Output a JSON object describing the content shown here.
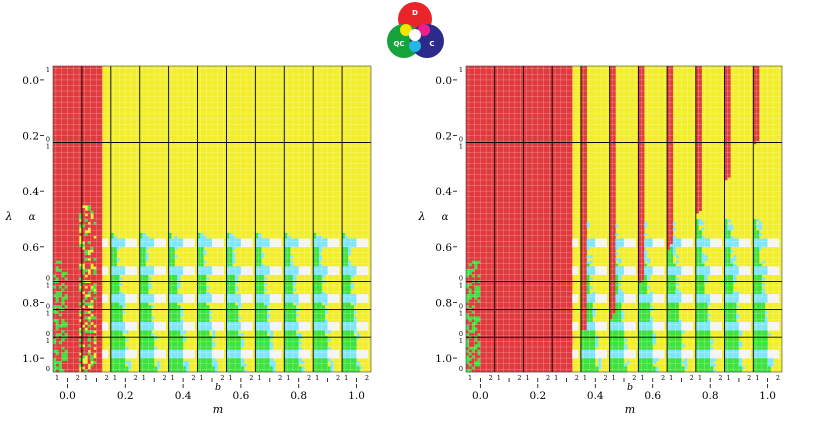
{
  "legend": {
    "items": [
      {
        "label": "D",
        "color": "#e8252b"
      },
      {
        "label": "QC",
        "color": "#17a33b"
      },
      {
        "label": "C",
        "color": "#2c2b8c"
      }
    ],
    "overlap_colors": {
      "D_QC": "#f2e600",
      "D_C": "#ee1e8c",
      "QC_C": "#22b7e6",
      "all": "#ffffff"
    }
  },
  "colors": {
    "D": "#e03a3e",
    "mixed": "#f2ee2c",
    "QC": "#3ee23e",
    "QC_C": "#7fe6ff",
    "C": "#2c2b8c",
    "empty": "#f4f4f4",
    "grid": "#000000"
  },
  "chart_data": [
    {
      "type": "heatmap",
      "xlabel": "m",
      "ylabel": "λ",
      "inner_xlabel": "b",
      "inner_ylabel": "α",
      "xticks": [
        "0.0",
        "0.2",
        "0.4",
        "0.6",
        "0.8",
        "1.0"
      ],
      "yticks": [
        "0.0",
        "0.2",
        "0.4",
        "0.6",
        "0.8",
        "1.0"
      ],
      "xlim": [
        -0.05,
        1.05
      ],
      "ylim": [
        1.05,
        -0.05
      ],
      "m_values": [
        0.0,
        0.1,
        0.2,
        0.3,
        0.4,
        0.5,
        0.6,
        0.7,
        0.8,
        0.9,
        1.0
      ],
      "lambda_values": [
        0.0,
        0.25,
        0.75,
        0.85,
        0.95
      ],
      "inner_b_ticks": [
        "1",
        "2"
      ],
      "inner_alpha_ticks": [
        "0",
        "1"
      ],
      "defection_up_to_m": 0.1,
      "cooperation_start_lambda": 0.55
    },
    {
      "type": "heatmap",
      "xlabel": "m",
      "ylabel": "λ",
      "inner_xlabel": "b",
      "inner_ylabel": "α",
      "xticks": [
        "0.0",
        "0.2",
        "0.4",
        "0.6",
        "0.8",
        "1.0"
      ],
      "yticks": [
        "0.0",
        "0.2",
        "0.4",
        "0.6",
        "0.8",
        "1.0"
      ],
      "xlim": [
        -0.05,
        1.05
      ],
      "ylim": [
        1.05,
        -0.05
      ],
      "m_values": [
        0.0,
        0.1,
        0.2,
        0.3,
        0.4,
        0.5,
        0.6,
        0.7,
        0.8,
        0.9,
        1.0
      ],
      "lambda_values": [
        0.0,
        0.25,
        0.75,
        0.85,
        0.95
      ],
      "inner_b_ticks": [
        "1",
        "2"
      ],
      "inner_alpha_ticks": [
        "0",
        "1"
      ],
      "defection_up_to_m": 0.3,
      "cooperation_start_lambda": 0.5
    }
  ]
}
